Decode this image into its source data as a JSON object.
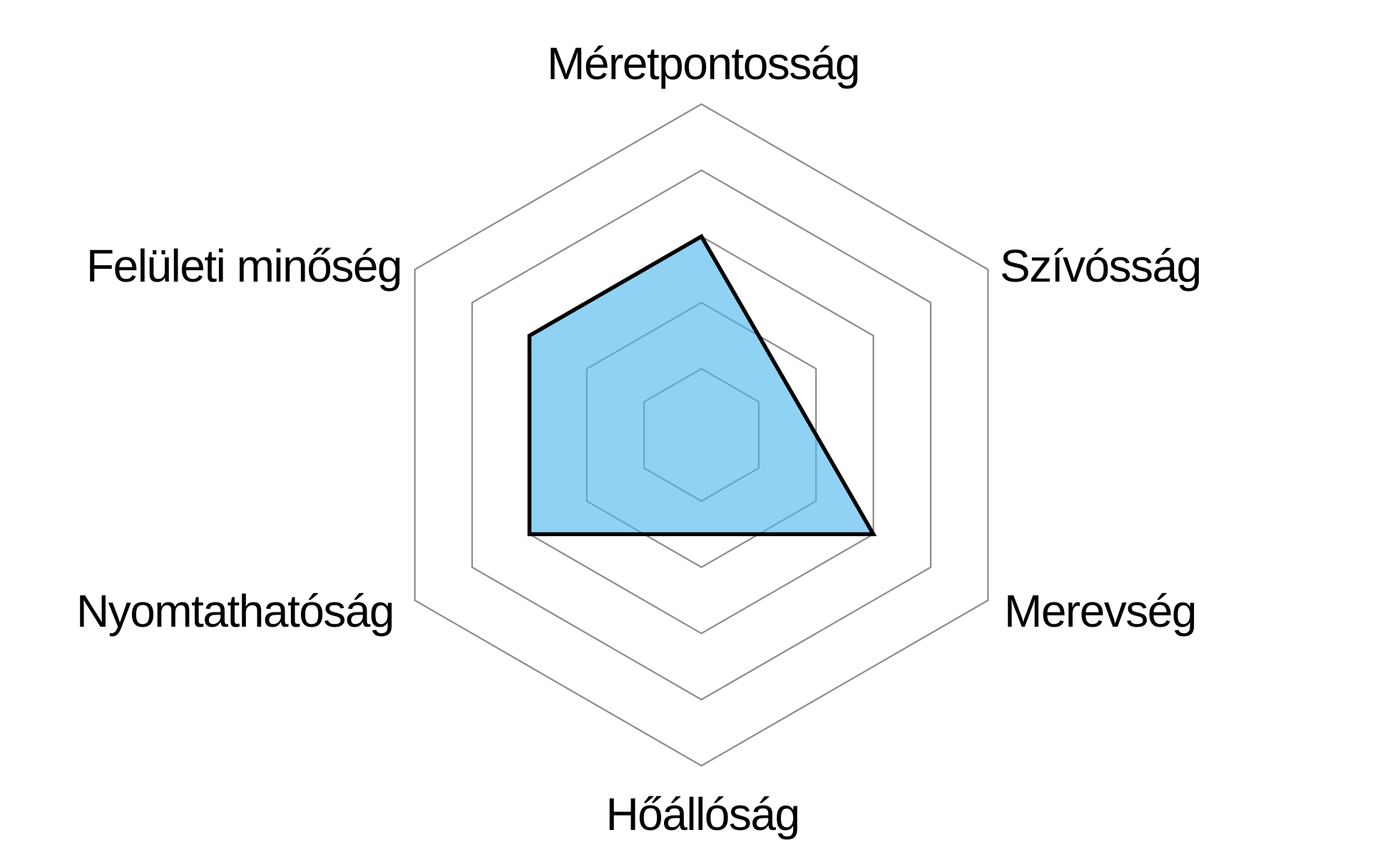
{
  "chart_data": {
    "type": "radar",
    "grid_shape": "hexagon",
    "categories": [
      "Méretpontosság",
      "Szívósság",
      "Merevség",
      "Hőállóság",
      "Nyomtathatóság",
      "Felületi minőség"
    ],
    "series": [
      {
        "values": [
          3,
          1.5,
          3,
          1.5,
          3,
          3
        ]
      }
    ],
    "scale": {
      "min": 0,
      "max": 5,
      "ring_step": 1,
      "rings": 5,
      "tick_labels_visible": false
    },
    "legend": "none",
    "radial_spokes_visible": false,
    "colors": {
      "grid_line": "#8c8c8c",
      "series_fill": "rgba(75,183,238,0.62)",
      "series_outline": "#000000",
      "label_text": "#000000",
      "background": "#ffffff"
    }
  }
}
